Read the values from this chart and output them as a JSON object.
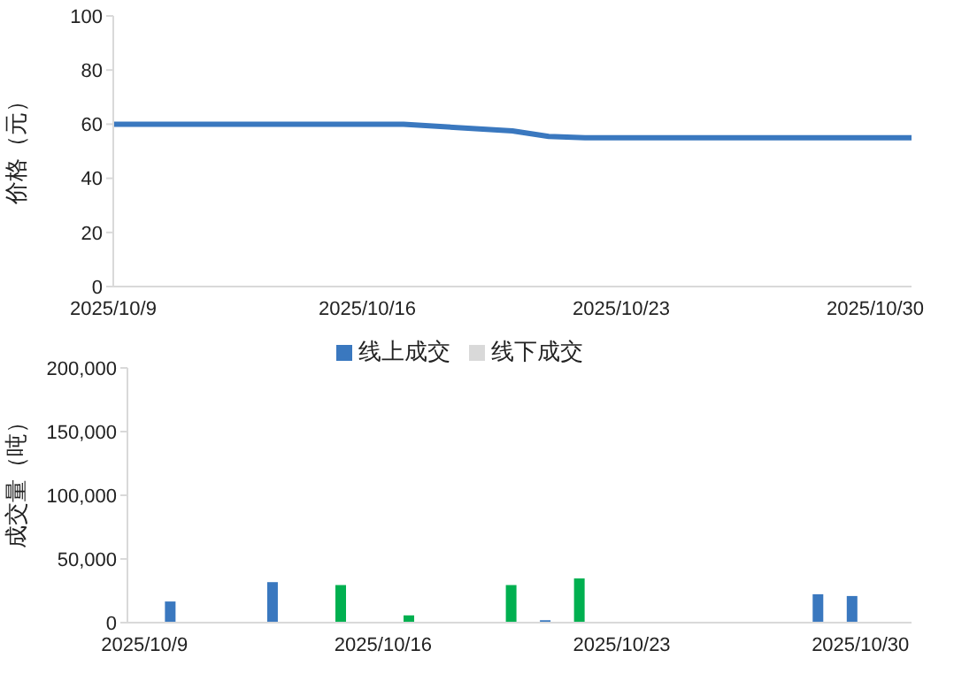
{
  "chart_data": [
    {
      "type": "line",
      "ylabel": "价格（元）",
      "categories": [
        "2025/10/9",
        null,
        null,
        null,
        null,
        null,
        null,
        "2025/10/16",
        null,
        null,
        null,
        null,
        null,
        null,
        "2025/10/23",
        null,
        null,
        null,
        null,
        null,
        null,
        "2025/10/30",
        null
      ],
      "series": [
        {
          "color": "#3a78bf",
          "values": [
            60,
            60,
            null,
            null,
            60,
            60,
            60,
            60,
            60,
            null,
            null,
            57.5,
            55.5,
            55,
            55,
            55,
            null,
            null,
            55,
            55,
            55,
            55,
            55
          ]
        }
      ],
      "ylim": [
        0,
        100
      ],
      "yticks": [
        0,
        20,
        40,
        60,
        80,
        100
      ],
      "marker": "none"
    },
    {
      "type": "bar",
      "ylabel": "成交量（吨）",
      "categories": [
        "2025/10/9",
        null,
        null,
        null,
        null,
        null,
        null,
        "2025/10/16",
        null,
        null,
        null,
        null,
        null,
        null,
        "2025/10/23",
        null,
        null,
        null,
        null,
        null,
        null,
        "2025/10/30",
        null
      ],
      "series": [
        {
          "name": "线上成交",
          "color": "#3a78bf",
          "colors": [
            "#3a78bf",
            "#3a78bf",
            "#3a78bf",
            "#3a78bf",
            "#3a78bf",
            "#3a78bf",
            "#00b050",
            "#3a78bf",
            "#00b050",
            "#3a78bf",
            "#3a78bf",
            "#00b050",
            "#3a78bf",
            "#00b050",
            "#3a78bf",
            "#3a78bf",
            "#3a78bf",
            "#3a78bf",
            "#3a78bf",
            "#3a78bf",
            "#3a78bf",
            "#3a78bf",
            "#3a78bf"
          ],
          "values": [
            null,
            16600,
            null,
            null,
            31800,
            null,
            29500,
            null,
            5700,
            null,
            null,
            29500,
            1900,
            34700,
            null,
            null,
            null,
            null,
            null,
            null,
            22300,
            20900,
            null
          ]
        },
        {
          "name": "线下成交",
          "color": "#d9d9d9",
          "values": [
            null,
            null,
            null,
            null,
            null,
            null,
            null,
            null,
            null,
            null,
            null,
            null,
            null,
            null,
            null,
            null,
            null,
            null,
            null,
            null,
            null,
            null,
            null
          ]
        }
      ],
      "ylim": [
        0,
        200000
      ],
      "yticks": [
        0,
        {
          "value": 50000,
          "label": "50,000"
        },
        {
          "value": 100000,
          "label": "100,000"
        },
        {
          "value": 150000,
          "label": "150,000"
        },
        {
          "value": 200000,
          "label": "200,000"
        }
      ],
      "legend": "top"
    }
  ]
}
